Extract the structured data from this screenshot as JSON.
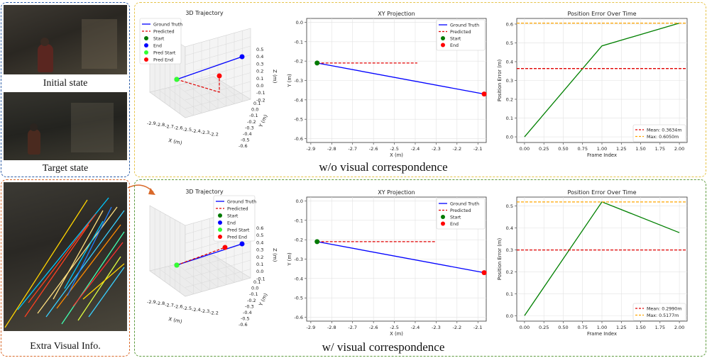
{
  "left": {
    "initial_caption": "Initial state",
    "target_caption": "Target state",
    "extra_caption": "Extra Visual Info.",
    "colors": {
      "blue": "#2f5fa8",
      "orange": "#d9692a",
      "yellow": "#e6c34a",
      "green": "#5d9a3c"
    }
  },
  "rows": [
    {
      "caption": "w/o visual correspondence",
      "traj3d": {
        "title": "3D Trajectory",
        "xlabel": "X (m)",
        "ylabel": "Y (m)",
        "zlabel": "Z (m)",
        "xticks": [
          "-2.9",
          "-2.8",
          "-2.7",
          "-2.6",
          "-2.5",
          "-2.4",
          "-2.3",
          "-2.2"
        ],
        "yticks": [
          "0.1",
          "0.0",
          "-0.1",
          "-0.2",
          "-0.3",
          "-0.4",
          "-0.5",
          "-0.6"
        ],
        "zticks": [
          "0.5",
          "0.4",
          "0.3",
          "0.2",
          "0.1",
          "0.0",
          "-0.1",
          "-0.2"
        ],
        "legend": [
          "Ground Truth",
          "Predicted",
          "Start",
          "End",
          "Pred Start",
          "Pred End"
        ]
      },
      "xy": {
        "title": "XY Projection",
        "xlabel": "X (m)",
        "ylabel": "Y (m)",
        "xticks": [
          "-2.9",
          "-2.8",
          "-2.7",
          "-2.6",
          "-2.5",
          "-2.4",
          "-2.3",
          "-2.2",
          "-2.1"
        ],
        "yticks": [
          "0.0",
          "-0.1",
          "-0.2",
          "-0.3",
          "-0.4",
          "-0.5",
          "-0.6"
        ],
        "legend": [
          "Ground Truth",
          "Predicted",
          "Start",
          "End"
        ]
      },
      "err": {
        "title": "Position Error Over Time",
        "xlabel": "Frame Index",
        "ylabel": "Position Error (m)",
        "xticks": [
          "0.00",
          "0.25",
          "0.50",
          "0.75",
          "1.00",
          "1.25",
          "1.50",
          "1.75",
          "2.00"
        ],
        "yticks": [
          "0.0",
          "0.1",
          "0.2",
          "0.3",
          "0.4",
          "0.5",
          "0.6"
        ],
        "legend": [
          "Mean: 0.3634m",
          "Max: 0.6050m"
        ]
      }
    },
    {
      "caption": "w/ visual correspondence",
      "traj3d": {
        "title": "3D Trajectory",
        "xlabel": "X (m)",
        "ylabel": "Y (m)",
        "zlabel": "Z (m)",
        "xticks": [
          "-2.9",
          "-2.8",
          "-2.7",
          "-2.6",
          "-2.5",
          "-2.4",
          "-2.3",
          "-2.2"
        ],
        "yticks": [
          "0.1",
          "0.0",
          "-0.1",
          "-0.2",
          "-0.3",
          "-0.4",
          "-0.5",
          "-0.6"
        ],
        "zticks": [
          "0.6",
          "0.5",
          "0.4",
          "0.3",
          "0.2",
          "0.1",
          "0.0",
          "-0.1"
        ],
        "legend": [
          "Ground Truth",
          "Predicted",
          "Start",
          "End",
          "Pred Start",
          "Pred End"
        ]
      },
      "xy": {
        "title": "XY Projection",
        "xlabel": "X (m)",
        "ylabel": "Y (m)",
        "xticks": [
          "-2.9",
          "-2.8",
          "-2.7",
          "-2.6",
          "-2.5",
          "-2.4",
          "-2.3",
          "-2.2",
          "-2.1"
        ],
        "yticks": [
          "0.0",
          "-0.1",
          "-0.2",
          "-0.3",
          "-0.4",
          "-0.5",
          "-0.6"
        ],
        "legend": [
          "Ground Truth",
          "Predicted",
          "Start",
          "End"
        ]
      },
      "err": {
        "title": "Position Error Over Time",
        "xlabel": "Frame Index",
        "ylabel": "Position Error (m)",
        "xticks": [
          "0.00",
          "0.25",
          "0.50",
          "0.75",
          "1.00",
          "1.25",
          "1.50",
          "1.75",
          "2.00"
        ],
        "yticks": [
          "0.0",
          "0.1",
          "0.2",
          "0.3",
          "0.4",
          "0.5"
        ],
        "legend": [
          "Mean: 0.2990m",
          "Max: 0.5177m"
        ]
      }
    }
  ],
  "chart_data": [
    {
      "type": "line",
      "title": "XY Projection",
      "xlabel": "X (m)",
      "ylabel": "Y (m)",
      "xlim": [
        -2.92,
        -2.06
      ],
      "ylim": [
        -0.62,
        0.02
      ],
      "grid": true,
      "legend_position": "top-right",
      "series": [
        {
          "name": "Ground Truth",
          "color": "#0000ff",
          "style": "solid",
          "x": [
            -2.87,
            -2.07
          ],
          "y": [
            -0.21,
            -0.37
          ]
        },
        {
          "name": "Predicted",
          "color": "#e00000",
          "style": "dashed",
          "x": [
            -2.87,
            -2.39
          ],
          "y": [
            -0.21,
            -0.21
          ]
        },
        {
          "name": "Start",
          "color": "#007a00",
          "style": "marker",
          "x": [
            -2.87
          ],
          "y": [
            -0.21
          ]
        },
        {
          "name": "End",
          "color": "#ff0000",
          "style": "marker",
          "x": [
            -2.07
          ],
          "y": [
            -0.37
          ]
        }
      ]
    },
    {
      "type": "line",
      "title": "Position Error Over Time",
      "xlabel": "Frame Index",
      "ylabel": "Position Error (m)",
      "xlim": [
        -0.1,
        2.1
      ],
      "ylim": [
        -0.03,
        0.63
      ],
      "grid": true,
      "legend_position": "bottom-right",
      "series": [
        {
          "name": "",
          "color": "#008000",
          "style": "solid",
          "x": [
            0,
            1,
            2
          ],
          "y": [
            0.0,
            0.484,
            0.605
          ]
        },
        {
          "name": "Mean: 0.3634m",
          "color": "#e00000",
          "style": "dashed",
          "x": [
            -0.1,
            2.1
          ],
          "y": [
            0.3634,
            0.3634
          ]
        },
        {
          "name": "Max: 0.6050m",
          "color": "#ffa500",
          "style": "dashed",
          "x": [
            -0.1,
            2.1
          ],
          "y": [
            0.605,
            0.605
          ]
        }
      ]
    },
    {
      "type": "line",
      "title": "XY Projection",
      "xlabel": "X (m)",
      "ylabel": "Y (m)",
      "xlim": [
        -2.92,
        -2.06
      ],
      "ylim": [
        -0.62,
        0.02
      ],
      "grid": true,
      "legend_position": "top-right",
      "series": [
        {
          "name": "Ground Truth",
          "color": "#0000ff",
          "style": "solid",
          "x": [
            -2.87,
            -2.07
          ],
          "y": [
            -0.21,
            -0.37
          ]
        },
        {
          "name": "Predicted",
          "color": "#e00000",
          "style": "dashed",
          "x": [
            -2.87,
            -2.3
          ],
          "y": [
            -0.21,
            -0.21
          ]
        },
        {
          "name": "Start",
          "color": "#007a00",
          "style": "marker",
          "x": [
            -2.87
          ],
          "y": [
            -0.21
          ]
        },
        {
          "name": "End",
          "color": "#ff0000",
          "style": "marker",
          "x": [
            -2.07
          ],
          "y": [
            -0.37
          ]
        }
      ]
    },
    {
      "type": "line",
      "title": "Position Error Over Time",
      "xlabel": "Frame Index",
      "ylabel": "Position Error (m)",
      "xlim": [
        -0.1,
        2.1
      ],
      "ylim": [
        -0.025,
        0.54
      ],
      "grid": true,
      "legend_position": "bottom-right",
      "series": [
        {
          "name": "",
          "color": "#008000",
          "style": "solid",
          "x": [
            0,
            1,
            2
          ],
          "y": [
            0.0,
            0.518,
            0.378
          ]
        },
        {
          "name": "Mean: 0.2990m",
          "color": "#e00000",
          "style": "dashed",
          "x": [
            -0.1,
            2.1
          ],
          "y": [
            0.299,
            0.299
          ]
        },
        {
          "name": "Max: 0.5177m",
          "color": "#ffa500",
          "style": "dashed",
          "x": [
            -0.1,
            2.1
          ],
          "y": [
            0.5177,
            0.5177
          ]
        }
      ]
    }
  ]
}
